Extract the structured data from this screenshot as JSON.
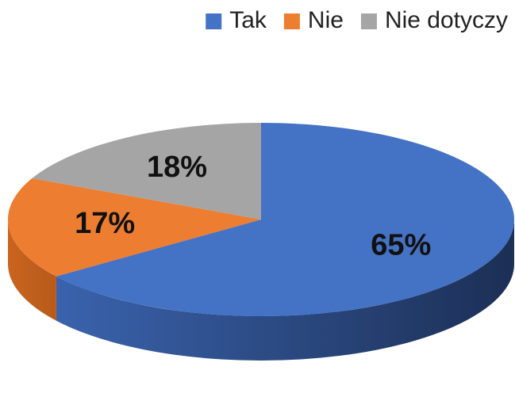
{
  "chart_data": {
    "type": "pie",
    "categories": [
      "Tak",
      "Nie",
      "Nie dotyczy"
    ],
    "values": [
      65,
      17,
      18
    ],
    "value_labels": [
      "65%",
      "17%",
      "18%"
    ],
    "colors": [
      "#4472c4",
      "#ed7d31",
      "#a5a5a5"
    ],
    "legend": "top-right"
  }
}
